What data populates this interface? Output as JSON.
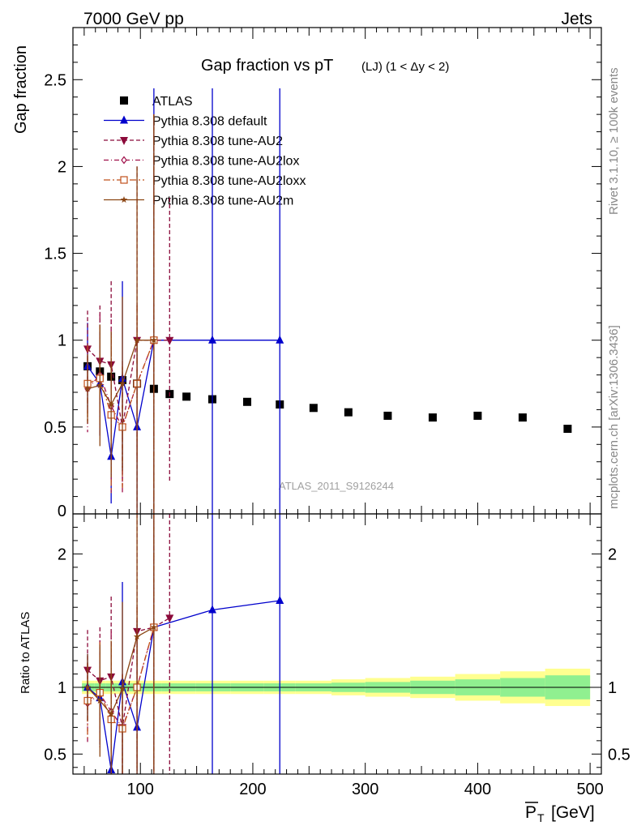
{
  "header": {
    "left": "7000 GeV pp",
    "right": "Jets"
  },
  "side_labels": {
    "rivet": "Rivet 3.1.10, ≥ 100k events",
    "mcplots": "mcplots.cern.ch [arXiv:1306.3436]"
  },
  "watermark": "ATLAS_2011_S9126244",
  "colors": {
    "atlas": "#000000",
    "default": "#0000cc",
    "au2": "#8b0a3a",
    "au2lox": "#a0104a",
    "au2loxx": "#c0501a",
    "au2m": "#8b4513",
    "band_inner": "#90f090",
    "band_outer": "#ffff90"
  },
  "chart_data": [
    {
      "type": "scatter",
      "title_main": "Gap fraction vs pT",
      "title_sub": "(LJ)  (1 < Δy < 2)",
      "ylabel": "Gap fraction",
      "xlim": [
        40,
        510
      ],
      "ylim": [
        0,
        2.8
      ],
      "yticks": [
        0.5,
        1,
        1.5,
        2,
        2.5
      ],
      "ytick_labels": [
        "0.5",
        "1",
        "1.5",
        "2",
        "2.5"
      ],
      "ytick_bottom_label": "0",
      "legend_position": "top-left",
      "series": [
        {
          "key": "atlas",
          "name": "ATLAS",
          "style": "data",
          "x": [
            53,
            64,
            74,
            84,
            97,
            112,
            126,
            141,
            164,
            195,
            224,
            254,
            285,
            320,
            360,
            400,
            440,
            480
          ],
          "y": [
            0.85,
            0.82,
            0.79,
            0.77,
            0.75,
            0.72,
            0.69,
            0.675,
            0.66,
            0.645,
            0.63,
            0.61,
            0.585,
            0.565,
            0.555,
            0.565,
            0.555,
            0.49
          ]
        },
        {
          "key": "default",
          "name": "Pythia 8.308 default",
          "style": "solid",
          "marker": "tri-up",
          "x": [
            53,
            64,
            74,
            84,
            97,
            112,
            164,
            224
          ],
          "y": [
            0.85,
            0.75,
            0.33,
            0.78,
            0.5,
            1.0,
            1.0,
            1.0
          ],
          "err": [
            0.25,
            0.3,
            0.27,
            0.56,
            0.5,
            1.45,
            1.45,
            1.45
          ]
        },
        {
          "key": "au2",
          "name": "Pythia 8.308 tune-AU2",
          "style": "dashed",
          "marker": "tri-down",
          "x": [
            53,
            64,
            74,
            84,
            97,
            112,
            126
          ],
          "y": [
            0.95,
            0.88,
            0.86,
            0.5,
            1.0,
            1.0,
            1.0
          ],
          "err": [
            0.22,
            0.32,
            0.48,
            0.35,
            1.0,
            1.3,
            0.82
          ]
        },
        {
          "key": "au2lox",
          "name": "Pythia 8.308 tune-AU2lox",
          "style": "dashdot",
          "marker": "diamond-open",
          "x": [
            53,
            64,
            74,
            84,
            97,
            112
          ],
          "y": [
            0.72,
            0.8,
            0.62,
            0.5,
            0.75,
            1.0
          ],
          "err": [
            0.25,
            0.35,
            0.5,
            0.38,
            0.45,
            1.3
          ]
        },
        {
          "key": "au2loxx",
          "name": "Pythia 8.308 tune-AU2loxx",
          "style": "dashdot2",
          "marker": "square-open",
          "x": [
            53,
            64,
            74,
            84,
            97,
            112
          ],
          "y": [
            0.75,
            0.78,
            0.57,
            0.5,
            0.75,
            1.0
          ],
          "err": [
            0.22,
            0.3,
            0.45,
            0.35,
            0.45,
            1.3
          ]
        },
        {
          "key": "au2m",
          "name": "Pythia 8.308 tune-AU2m",
          "style": "solid2",
          "marker": "star",
          "x": [
            53,
            64,
            74,
            84,
            97,
            112
          ],
          "y": [
            0.72,
            0.74,
            0.63,
            0.75,
            1.0,
            1.0
          ],
          "err": [
            0.2,
            0.35,
            0.42,
            0.5,
            1.0,
            1.3
          ]
        }
      ]
    },
    {
      "type": "scatter",
      "ylabel": "Ratio to ATLAS",
      "xlabel": "P",
      "xlabel_sub": "T",
      "xlabel_unit": "[GeV]",
      "xlim": [
        40,
        510
      ],
      "xticks": [
        100,
        200,
        300,
        400,
        500
      ],
      "xtick_labels": [
        "100",
        "200",
        "300",
        "400",
        "500"
      ],
      "ylim": [
        0.35,
        2.3
      ],
      "yticks": [
        0.5,
        1,
        2
      ],
      "ytick_labels": [
        "0.5",
        "1",
        "2"
      ],
      "bands": {
        "x_edges": [
          48,
          59,
          69,
          79,
          90,
          104,
          119,
          133,
          149,
          180,
          210,
          238,
          270,
          300,
          340,
          380,
          420,
          460,
          500
        ],
        "inner": [
          0.03,
          0.03,
          0.03,
          0.03,
          0.03,
          0.03,
          0.03,
          0.03,
          0.03,
          0.03,
          0.03,
          0.03,
          0.035,
          0.04,
          0.05,
          0.06,
          0.07,
          0.09
        ],
        "outer": [
          0.05,
          0.05,
          0.05,
          0.05,
          0.05,
          0.05,
          0.05,
          0.05,
          0.05,
          0.05,
          0.05,
          0.05,
          0.06,
          0.07,
          0.08,
          0.1,
          0.12,
          0.14
        ]
      },
      "series": [
        {
          "key": "default",
          "name": "Pythia 8.308 default",
          "style": "solid",
          "marker": "tri-up",
          "x": [
            53,
            64,
            74,
            84,
            97,
            112,
            164,
            224
          ],
          "y": [
            1.0,
            0.92,
            0.38,
            1.04,
            0.7,
            1.45,
            1.58,
            1.65
          ],
          "err": [
            0.25,
            0.35,
            0.4,
            0.75,
            0.8,
            2.5,
            2.5,
            2.5
          ]
        },
        {
          "key": "au2",
          "name": "Pythia 8.308 tune-AU2",
          "style": "dashed",
          "marker": "tri-down",
          "x": [
            53,
            64,
            74,
            84,
            97,
            112,
            126
          ],
          "y": [
            1.13,
            1.05,
            1.08,
            0.7,
            1.42,
            1.45,
            1.52
          ],
          "err": [
            0.3,
            0.4,
            0.6,
            0.4,
            1.5,
            2.5,
            2.0
          ]
        },
        {
          "key": "au2lox",
          "name": "Pythia 8.308 tune-AU2lox",
          "style": "dashdot",
          "marker": "diamond-open",
          "x": [
            53,
            64,
            74,
            84,
            97,
            112
          ],
          "y": [
            0.88,
            0.95,
            0.82,
            0.7,
            1.0,
            1.45
          ],
          "err": [
            0.3,
            0.4,
            0.6,
            0.4,
            0.6,
            2.5
          ]
        },
        {
          "key": "au2loxx",
          "name": "Pythia 8.308 tune-AU2loxx",
          "style": "dashdot2",
          "marker": "square-open",
          "x": [
            53,
            64,
            74,
            84,
            97,
            112
          ],
          "y": [
            0.9,
            0.96,
            0.76,
            0.69,
            1.0,
            1.45
          ],
          "err": [
            0.28,
            0.38,
            0.55,
            0.4,
            0.6,
            2.5
          ]
        },
        {
          "key": "au2m",
          "name": "Pythia 8.308 tune-AU2m",
          "style": "solid2",
          "marker": "star",
          "x": [
            53,
            64,
            74,
            84,
            97,
            112
          ],
          "y": [
            1.0,
            0.9,
            0.8,
            0.99,
            1.38,
            1.45
          ],
          "err": [
            0.25,
            0.42,
            0.55,
            0.65,
            1.3,
            2.5
          ]
        }
      ]
    }
  ]
}
